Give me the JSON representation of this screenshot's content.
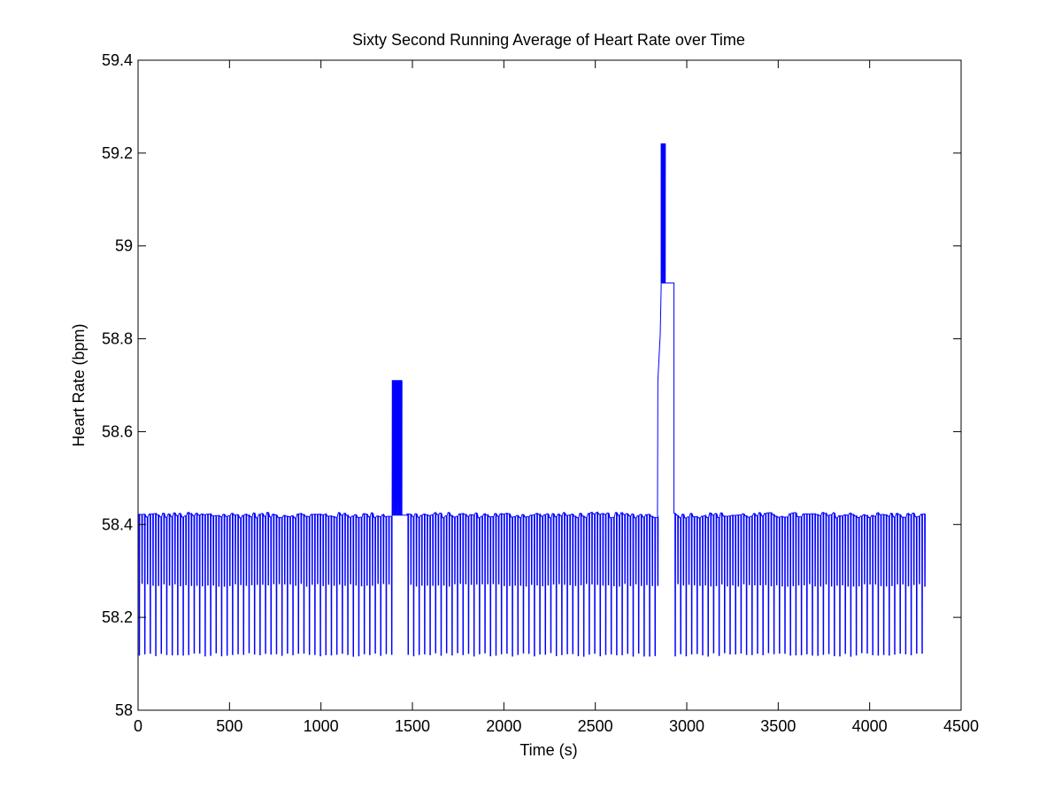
{
  "chart_data": {
    "type": "line",
    "title": "Sixty Second Running Average of Heart Rate over Time",
    "xlabel": "Time (s)",
    "ylabel": "Heart Rate (bpm)",
    "xlim": [
      0,
      4500
    ],
    "ylim": [
      58,
      59.4
    ],
    "xticks": [
      0,
      500,
      1000,
      1500,
      2000,
      2500,
      3000,
      3500,
      4000,
      4500
    ],
    "xtick_labels": [
      "0",
      "500",
      "1000",
      "1500",
      "2000",
      "2500",
      "3000",
      "3500",
      "4000",
      "4500"
    ],
    "yticks": [
      58,
      58.2,
      58.4,
      58.6,
      58.8,
      59,
      59.2,
      59.4
    ],
    "ytick_labels": [
      "58",
      "58.2",
      "58.4",
      "58.6",
      "58.8",
      "59",
      "59.2",
      "59.4"
    ],
    "grid": false,
    "series": [
      {
        "color": "#0000ff",
        "x_range": [
          0,
          4300
        ],
        "oscillation": {
          "period": 15,
          "baseline": 58.42,
          "mid_level": 58.27,
          "low_level": 58.12
        },
        "segments": [
          {
            "x": [
              0,
              1390
            ],
            "behavior": "oscillating",
            "high": 58.42,
            "mid": 58.27,
            "low": 58.12
          },
          {
            "x": [
              1390,
              1440
            ],
            "behavior": "plateau-oscillating",
            "high": 58.71,
            "low": 58.42
          },
          {
            "x": [
              1440,
              1470
            ],
            "behavior": "flat",
            "value": 58.42
          },
          {
            "x": [
              1470,
              2840
            ],
            "behavior": "oscillating",
            "high": 58.42,
            "mid": 58.27,
            "low": 58.12
          },
          {
            "x": [
              2840,
              2860
            ],
            "behavior": "rise",
            "value": 58.71
          },
          {
            "x": [
              2860,
              2880
            ],
            "behavior": "plateau-oscillating",
            "high": 59.22,
            "low": 58.92
          },
          {
            "x": [
              2880,
              2930
            ],
            "behavior": "plateau",
            "value": 58.92
          },
          {
            "x": [
              2930,
              4300
            ],
            "behavior": "oscillating",
            "high": 58.42,
            "mid": 58.27,
            "low": 58.12
          }
        ]
      }
    ]
  },
  "colors": {
    "axes": "#000000",
    "line": "#0000ff",
    "background": "#ffffff"
  }
}
